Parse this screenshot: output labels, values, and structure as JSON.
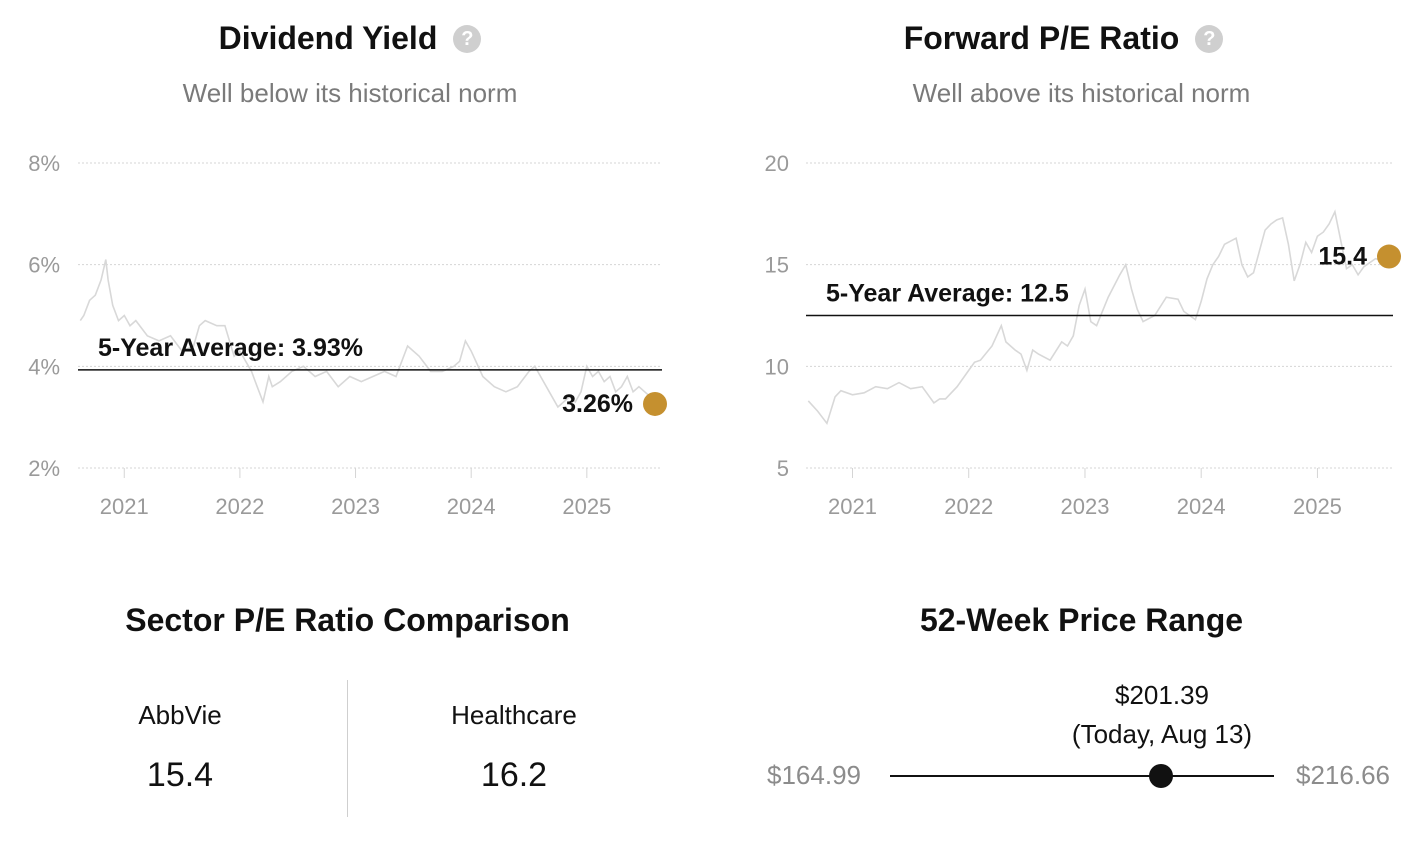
{
  "colors": {
    "accent": "#c5902f",
    "line_gray": "#d8d8d8",
    "axis_text": "#9a9a9a",
    "grid": "#d5d5d5"
  },
  "help_icon": "question-circle-icon",
  "charts": {
    "dividend": {
      "title": "Dividend Yield",
      "subtitle": "Well below its historical norm",
      "avg_label": "5-Year Average: 3.93%",
      "current_label": "3.26%",
      "chart_data": {
        "type": "line",
        "title": "Dividend Yield",
        "subtitle": "Well below its historical norm",
        "xlabel": "",
        "ylabel": "",
        "x_ticks": [
          "2021",
          "2022",
          "2023",
          "2024",
          "2025"
        ],
        "y_ticks": [
          "2%",
          "4%",
          "6%",
          "8%"
        ],
        "ylim": [
          2,
          8
        ],
        "xlim": [
          2020.6,
          2025.65
        ],
        "grid": true,
        "reference_line": {
          "label": "5-Year Average: 3.93%",
          "value": 3.93
        },
        "current": {
          "label": "3.26%",
          "x": 2025.62,
          "y": 3.26
        },
        "series": [
          {
            "x": [
              2020.62,
              2020.65,
              2020.7,
              2020.75,
              2020.8,
              2020.84,
              2020.86,
              2020.9,
              2020.95,
              2021.0,
              2021.05,
              2021.1,
              2021.2,
              2021.3,
              2021.4,
              2021.5,
              2021.6,
              2021.65,
              2021.7,
              2021.8,
              2021.87,
              2021.95,
              2022.0,
              2022.05,
              2022.1,
              2022.15,
              2022.2,
              2022.25,
              2022.28,
              2022.35,
              2022.45,
              2022.55,
              2022.65,
              2022.75,
              2022.85,
              2022.95,
              2023.05,
              2023.15,
              2023.25,
              2023.35,
              2023.45,
              2023.55,
              2023.65,
              2023.75,
              2023.85,
              2023.9,
              2023.95,
              2024.0,
              2024.1,
              2024.2,
              2024.3,
              2024.4,
              2024.5,
              2024.55,
              2024.6,
              2024.7,
              2024.75,
              2024.8,
              2024.85,
              2024.9,
              2024.95,
              2025.0,
              2025.05,
              2025.1,
              2025.15,
              2025.2,
              2025.25,
              2025.3,
              2025.35,
              2025.4,
              2025.45,
              2025.5,
              2025.55,
              2025.62
            ],
            "y": [
              4.9,
              5.0,
              5.3,
              5.4,
              5.7,
              6.1,
              5.7,
              5.2,
              4.9,
              5.0,
              4.8,
              4.9,
              4.6,
              4.5,
              4.6,
              4.3,
              4.4,
              4.8,
              4.9,
              4.8,
              4.8,
              4.2,
              4.3,
              4.1,
              3.9,
              3.6,
              3.3,
              3.8,
              3.6,
              3.7,
              3.9,
              4.0,
              3.8,
              3.9,
              3.6,
              3.8,
              3.7,
              3.8,
              3.9,
              3.8,
              4.4,
              4.2,
              3.9,
              3.9,
              4.0,
              4.1,
              4.5,
              4.3,
              3.8,
              3.6,
              3.5,
              3.6,
              3.9,
              4.0,
              3.8,
              3.4,
              3.2,
              3.3,
              3.4,
              3.3,
              3.5,
              4.0,
              3.8,
              3.9,
              3.7,
              3.8,
              3.5,
              3.6,
              3.8,
              3.5,
              3.6,
              3.5,
              3.4,
              3.3
            ]
          }
        ]
      }
    },
    "pe": {
      "title": "Forward P/E Ratio",
      "subtitle": "Well above its historical norm",
      "avg_label": "5-Year Average: 12.5",
      "current_label": "15.4",
      "chart_data": {
        "type": "line",
        "title": "Forward P/E Ratio",
        "subtitle": "Well above its historical norm",
        "xlabel": "",
        "ylabel": "",
        "x_ticks": [
          "2021",
          "2022",
          "2023",
          "2024",
          "2025"
        ],
        "y_ticks": [
          "5",
          "10",
          "15",
          "20"
        ],
        "ylim": [
          5,
          20
        ],
        "xlim": [
          2020.6,
          2025.65
        ],
        "grid": true,
        "reference_line": {
          "label": "5-Year Average: 12.5",
          "value": 12.5
        },
        "current": {
          "label": "15.4",
          "x": 2025.62,
          "y": 15.4
        },
        "series": [
          {
            "x": [
              2020.62,
              2020.7,
              2020.78,
              2020.85,
              2020.9,
              2021.0,
              2021.1,
              2021.2,
              2021.3,
              2021.4,
              2021.5,
              2021.6,
              2021.7,
              2021.75,
              2021.8,
              2021.9,
              2022.0,
              2022.05,
              2022.1,
              2022.2,
              2022.28,
              2022.32,
              2022.4,
              2022.45,
              2022.5,
              2022.55,
              2022.6,
              2022.7,
              2022.8,
              2022.85,
              2022.9,
              2022.95,
              2023.0,
              2023.05,
              2023.1,
              2023.2,
              2023.3,
              2023.35,
              2023.4,
              2023.45,
              2023.5,
              2023.6,
              2023.7,
              2023.8,
              2023.85,
              2023.9,
              2023.95,
              2024.0,
              2024.05,
              2024.1,
              2024.15,
              2024.2,
              2024.3,
              2024.35,
              2024.4,
              2024.45,
              2024.55,
              2024.6,
              2024.65,
              2024.7,
              2024.75,
              2024.8,
              2024.85,
              2024.9,
              2024.95,
              2025.0,
              2025.05,
              2025.1,
              2025.15,
              2025.2,
              2025.25,
              2025.3,
              2025.35,
              2025.4,
              2025.5,
              2025.55,
              2025.62
            ],
            "y": [
              8.3,
              7.8,
              7.2,
              8.5,
              8.8,
              8.6,
              8.7,
              9.0,
              8.9,
              9.2,
              8.9,
              9.0,
              8.2,
              8.4,
              8.4,
              9.0,
              9.8,
              10.2,
              10.3,
              11.0,
              12.0,
              11.2,
              10.8,
              10.6,
              9.8,
              10.8,
              10.6,
              10.3,
              11.2,
              11.0,
              11.5,
              13.0,
              13.8,
              12.2,
              12.0,
              13.4,
              14.5,
              15.0,
              13.8,
              12.8,
              12.2,
              12.5,
              13.4,
              13.3,
              12.7,
              12.5,
              12.3,
              13.2,
              14.3,
              15.0,
              15.4,
              16.0,
              16.3,
              15.0,
              14.4,
              14.6,
              16.7,
              17.0,
              17.2,
              17.3,
              16.0,
              14.2,
              15.0,
              16.1,
              15.6,
              16.4,
              16.6,
              17.0,
              17.6,
              16.2,
              14.8,
              15.0,
              14.5,
              14.9,
              15.3,
              15.2,
              15.4
            ]
          }
        ]
      }
    }
  },
  "sector": {
    "title": "Sector P/E Ratio Comparison",
    "items": [
      {
        "label": "AbbVie",
        "value": "15.4"
      },
      {
        "label": "Healthcare",
        "value": "16.2"
      }
    ]
  },
  "price_range": {
    "title": "52-Week Price Range",
    "low": "$164.99",
    "high": "$216.66",
    "current_price": "$201.39",
    "current_note": "(Today, Aug 13)",
    "low_value": 164.99,
    "high_value": 216.66,
    "current_value": 201.39
  }
}
